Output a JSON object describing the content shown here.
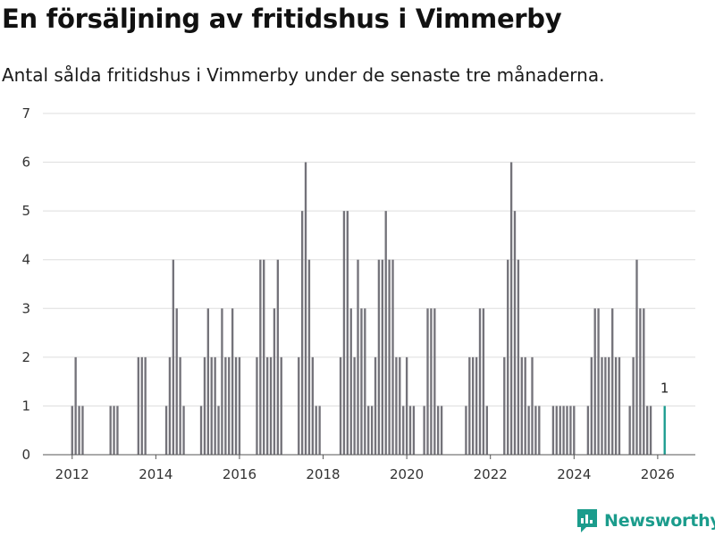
{
  "header": {
    "title": "En försäljning av fritidshus i Vimmerby",
    "subtitle": "Antal sålda fritidshus i Vimmerby under de senaste tre månaderna."
  },
  "brand": {
    "name": "Newsworthy",
    "color": "#1b9c8c",
    "icon": "newsworthy-logo-icon"
  },
  "colors": {
    "bar": "#74737a",
    "highlight": "#1a9c8f",
    "grid": "#dddddd",
    "axis": "#555555"
  },
  "chart_data": {
    "type": "bar",
    "title": "En försäljning av fritidshus i Vimmerby",
    "subtitle": "Antal sålda fritidshus i Vimmerby under de senaste tre månaderna.",
    "xlabel": "",
    "ylabel": "",
    "ylim": [
      0,
      7
    ],
    "yticks": [
      0,
      1,
      2,
      3,
      4,
      5,
      6,
      7
    ],
    "xticks": [
      2012,
      2014,
      2016,
      2018,
      2020,
      2022,
      2024,
      2026
    ],
    "xlim": [
      2011.3,
      2026.9
    ],
    "grid": true,
    "legend": "none",
    "series": [
      {
        "name": "Sålda fritidshus",
        "points": [
          {
            "x": 2012.0,
            "y": 1
          },
          {
            "x": 2012.083,
            "y": 2
          },
          {
            "x": 2012.167,
            "y": 1
          },
          {
            "x": 2012.25,
            "y": 1
          },
          {
            "x": 2012.917,
            "y": 1
          },
          {
            "x": 2013.0,
            "y": 1
          },
          {
            "x": 2013.083,
            "y": 1
          },
          {
            "x": 2013.583,
            "y": 2
          },
          {
            "x": 2013.667,
            "y": 2
          },
          {
            "x": 2013.75,
            "y": 2
          },
          {
            "x": 2014.25,
            "y": 1
          },
          {
            "x": 2014.333,
            "y": 2
          },
          {
            "x": 2014.417,
            "y": 4
          },
          {
            "x": 2014.5,
            "y": 3
          },
          {
            "x": 2014.583,
            "y": 2
          },
          {
            "x": 2014.667,
            "y": 1
          },
          {
            "x": 2015.083,
            "y": 1
          },
          {
            "x": 2015.167,
            "y": 2
          },
          {
            "x": 2015.25,
            "y": 3
          },
          {
            "x": 2015.333,
            "y": 2
          },
          {
            "x": 2015.417,
            "y": 2
          },
          {
            "x": 2015.5,
            "y": 1
          },
          {
            "x": 2015.583,
            "y": 3
          },
          {
            "x": 2015.667,
            "y": 2
          },
          {
            "x": 2015.75,
            "y": 2
          },
          {
            "x": 2015.833,
            "y": 3
          },
          {
            "x": 2015.917,
            "y": 2
          },
          {
            "x": 2016.0,
            "y": 2
          },
          {
            "x": 2016.417,
            "y": 2
          },
          {
            "x": 2016.5,
            "y": 4
          },
          {
            "x": 2016.583,
            "y": 4
          },
          {
            "x": 2016.667,
            "y": 2
          },
          {
            "x": 2016.75,
            "y": 2
          },
          {
            "x": 2016.833,
            "y": 3
          },
          {
            "x": 2016.917,
            "y": 4
          },
          {
            "x": 2017.0,
            "y": 2
          },
          {
            "x": 2017.417,
            "y": 2
          },
          {
            "x": 2017.5,
            "y": 5
          },
          {
            "x": 2017.583,
            "y": 6
          },
          {
            "x": 2017.667,
            "y": 4
          },
          {
            "x": 2017.75,
            "y": 2
          },
          {
            "x": 2017.833,
            "y": 1
          },
          {
            "x": 2017.917,
            "y": 1
          },
          {
            "x": 2018.417,
            "y": 2
          },
          {
            "x": 2018.5,
            "y": 5
          },
          {
            "x": 2018.583,
            "y": 5
          },
          {
            "x": 2018.667,
            "y": 3
          },
          {
            "x": 2018.75,
            "y": 2
          },
          {
            "x": 2018.833,
            "y": 4
          },
          {
            "x": 2018.917,
            "y": 3
          },
          {
            "x": 2019.0,
            "y": 3
          },
          {
            "x": 2019.083,
            "y": 1
          },
          {
            "x": 2019.167,
            "y": 1
          },
          {
            "x": 2019.25,
            "y": 2
          },
          {
            "x": 2019.333,
            "y": 4
          },
          {
            "x": 2019.417,
            "y": 4
          },
          {
            "x": 2019.5,
            "y": 5
          },
          {
            "x": 2019.583,
            "y": 4
          },
          {
            "x": 2019.667,
            "y": 4
          },
          {
            "x": 2019.75,
            "y": 2
          },
          {
            "x": 2019.833,
            "y": 2
          },
          {
            "x": 2019.917,
            "y": 1
          },
          {
            "x": 2020.0,
            "y": 2
          },
          {
            "x": 2020.083,
            "y": 1
          },
          {
            "x": 2020.167,
            "y": 1
          },
          {
            "x": 2020.417,
            "y": 1
          },
          {
            "x": 2020.5,
            "y": 3
          },
          {
            "x": 2020.583,
            "y": 3
          },
          {
            "x": 2020.667,
            "y": 3
          },
          {
            "x": 2020.75,
            "y": 1
          },
          {
            "x": 2020.833,
            "y": 1
          },
          {
            "x": 2021.417,
            "y": 1
          },
          {
            "x": 2021.5,
            "y": 2
          },
          {
            "x": 2021.583,
            "y": 2
          },
          {
            "x": 2021.667,
            "y": 2
          },
          {
            "x": 2021.75,
            "y": 3
          },
          {
            "x": 2021.833,
            "y": 3
          },
          {
            "x": 2021.917,
            "y": 1
          },
          {
            "x": 2022.333,
            "y": 2
          },
          {
            "x": 2022.417,
            "y": 4
          },
          {
            "x": 2022.5,
            "y": 6
          },
          {
            "x": 2022.583,
            "y": 5
          },
          {
            "x": 2022.667,
            "y": 4
          },
          {
            "x": 2022.75,
            "y": 2
          },
          {
            "x": 2022.833,
            "y": 2
          },
          {
            "x": 2022.917,
            "y": 1
          },
          {
            "x": 2023.0,
            "y": 2
          },
          {
            "x": 2023.083,
            "y": 1
          },
          {
            "x": 2023.167,
            "y": 1
          },
          {
            "x": 2023.5,
            "y": 1
          },
          {
            "x": 2023.583,
            "y": 1
          },
          {
            "x": 2023.667,
            "y": 1
          },
          {
            "x": 2023.75,
            "y": 1
          },
          {
            "x": 2023.833,
            "y": 1
          },
          {
            "x": 2023.917,
            "y": 1
          },
          {
            "x": 2024.0,
            "y": 1
          },
          {
            "x": 2024.333,
            "y": 1
          },
          {
            "x": 2024.417,
            "y": 2
          },
          {
            "x": 2024.5,
            "y": 3
          },
          {
            "x": 2024.583,
            "y": 3
          },
          {
            "x": 2024.667,
            "y": 2
          },
          {
            "x": 2024.75,
            "y": 2
          },
          {
            "x": 2024.833,
            "y": 2
          },
          {
            "x": 2024.917,
            "y": 3
          },
          {
            "x": 2025.0,
            "y": 2
          },
          {
            "x": 2025.083,
            "y": 2
          },
          {
            "x": 2025.333,
            "y": 1
          },
          {
            "x": 2025.417,
            "y": 2
          },
          {
            "x": 2025.5,
            "y": 4
          },
          {
            "x": 2025.583,
            "y": 3
          },
          {
            "x": 2025.667,
            "y": 3
          },
          {
            "x": 2025.75,
            "y": 1
          },
          {
            "x": 2025.833,
            "y": 1
          }
        ]
      },
      {
        "name": "Senaste tre månaderna",
        "highlight": true,
        "points": [
          {
            "x": 2026.167,
            "y": 1
          }
        ]
      }
    ],
    "annotations": [
      {
        "x": 2026.167,
        "y": 1,
        "text": "1"
      }
    ]
  }
}
